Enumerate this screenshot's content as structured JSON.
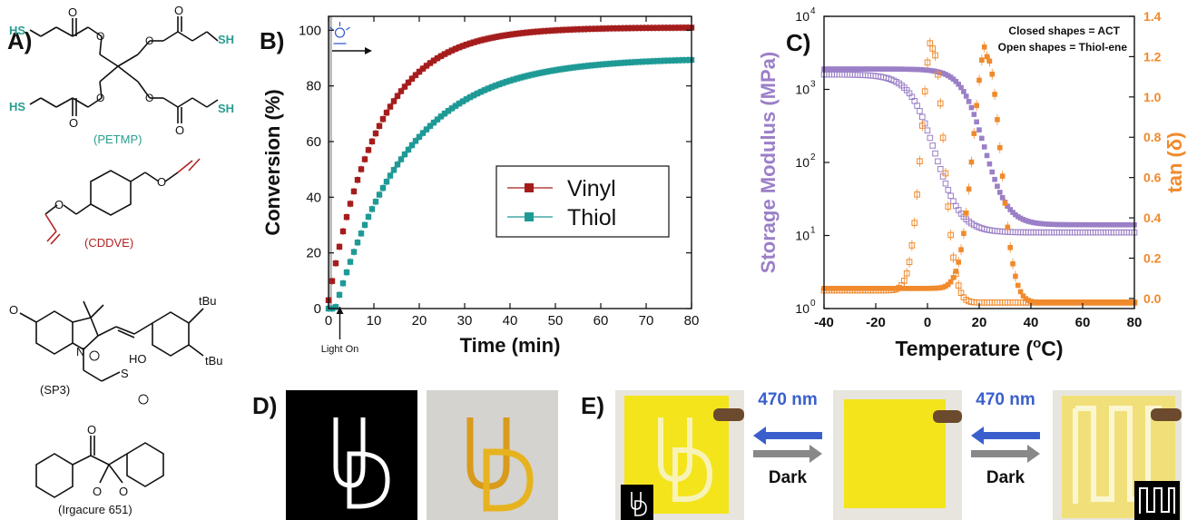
{
  "panels": {
    "a": "A)",
    "b": "B)",
    "c": "C)",
    "d": "D)",
    "e": "E)"
  },
  "chemistry": {
    "sh_label": "SH",
    "hs_label": "HS",
    "petmp": "(PETMP)",
    "cddve": "(CDDVE)",
    "sp3": "(SP3)",
    "irgacure": "(Irgacure 651)",
    "tbu": "tBu",
    "ho": "HO",
    "n_label": "N",
    "s_label": "S",
    "o_label": "O",
    "ome": "O"
  },
  "colors": {
    "vinyl": "#a51c1c",
    "thiol": "#1e9a96",
    "purple": "#9b7fc7",
    "orange": "#f08a2c",
    "petmp": "#2a9d8f",
    "cddve": "#b22222",
    "arrow_blue": "#3a5fcd",
    "arrow_gray": "#888888",
    "yellow": "#f4e41c"
  },
  "chart_data": [
    {
      "type": "scatter",
      "title": "",
      "xlabel": "Time (min)",
      "ylabel": "Conversion (%)",
      "xlim": [
        0,
        80
      ],
      "ylim": [
        0,
        105
      ],
      "xticks": [
        "0",
        "10",
        "20",
        "30",
        "40",
        "50",
        "60",
        "70",
        "80"
      ],
      "yticks": [
        "0",
        "20",
        "40",
        "60",
        "80",
        "100"
      ],
      "annotation": "Light On",
      "icon": "light-bulb-icon",
      "legend_position": "center-right",
      "series": [
        {
          "name": "Vinyl",
          "color": "#a51c1c",
          "marker": "square",
          "model": {
            "start": 3,
            "end": 101,
            "tau": 11,
            "delay": 0
          }
        },
        {
          "name": "Thiol",
          "color": "#1e9a96",
          "marker": "square",
          "model": {
            "start": 0,
            "end": 90,
            "tau": 16,
            "delay": 1.5
          }
        }
      ]
    },
    {
      "type": "scatter",
      "title": "",
      "xlabel": "Temperature (oC)",
      "xlabel_main": "Temperature (",
      "xlabel_sup": "o",
      "xlabel_end": "C)",
      "ylabel_left": "Storage Modulus (MPa)",
      "ylabel_right": "tan (δ)",
      "xlim": [
        -40,
        80
      ],
      "ylim_left_log": [
        1,
        10000
      ],
      "ylim_right": [
        -0.05,
        1.4
      ],
      "xticks": [
        "-40",
        "-20",
        "0",
        "20",
        "40",
        "60",
        "80"
      ],
      "yticks_left": [
        "10",
        "10",
        "10",
        "10",
        "10"
      ],
      "yticks_left_exp": [
        "0",
        "1",
        "2",
        "3",
        "4"
      ],
      "yticks_right": [
        "0.0",
        "0.2",
        "0.4",
        "0.6",
        "0.8",
        "1.0",
        "1.2",
        "1.4"
      ],
      "note_line1": "Closed shapes = ACT",
      "note_line2": "Open shapes = Thiol-ene",
      "series": [
        {
          "name": "",
          "fill": "closed",
          "axis": "left",
          "color": "#9b7fc7",
          "model": {
            "glassy": 1900,
            "rubbery": 14,
            "tg": 22,
            "width": 4.5
          }
        },
        {
          "name": "",
          "fill": "open",
          "axis": "left",
          "color": "#9b7fc7",
          "model": {
            "glassy": 1600,
            "rubbery": 11,
            "tg": 3,
            "width": 5
          }
        },
        {
          "name": "",
          "fill": "closed",
          "axis": "right",
          "color": "#f08a2c",
          "model": {
            "peak": 1.22,
            "center": 23,
            "sigma": 5.2,
            "base_low": 0.05,
            "base_high": -0.02
          }
        },
        {
          "name": "",
          "fill": "open",
          "axis": "right",
          "color": "#f08a2c",
          "model": {
            "peak": 1.26,
            "center": 2,
            "sigma": 4.3,
            "base_low": 0.04,
            "base_high": -0.02
          }
        }
      ]
    }
  ],
  "panel_e": {
    "wavelength_1": "470 nm",
    "dark_1": "Dark",
    "wavelength_2": "470 nm",
    "dark_2": "Dark"
  }
}
